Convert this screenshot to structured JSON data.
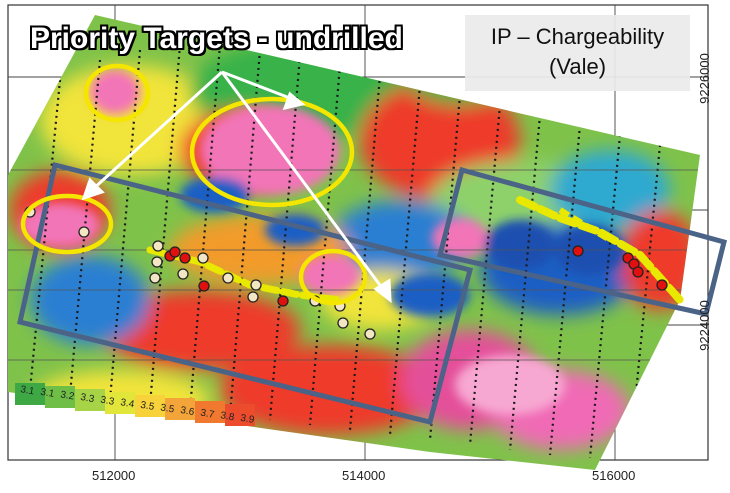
{
  "title": {
    "line1": "IP – Chargeability",
    "line2": "(Vale)"
  },
  "heading": "Priority Targets - undrilled",
  "axes": {
    "northing_labels": [
      "9226000",
      "9224000"
    ],
    "easting_labels": [
      "512000",
      "514000",
      "516000"
    ]
  },
  "legend_scale": [
    "3.1",
    "3.1",
    "3.2",
    "3.3",
    "3.3",
    "3.4",
    "3.5",
    "3.5",
    "3.6",
    "3.7",
    "3.8",
    "3.9"
  ],
  "colors": {
    "target_ring": "#f5e600",
    "survey_box": "#4a6387",
    "arrow": "#ffffff",
    "hole_red": "#e01010",
    "hole_pale": "#f2e6c4",
    "trend": "#e8e800"
  }
}
